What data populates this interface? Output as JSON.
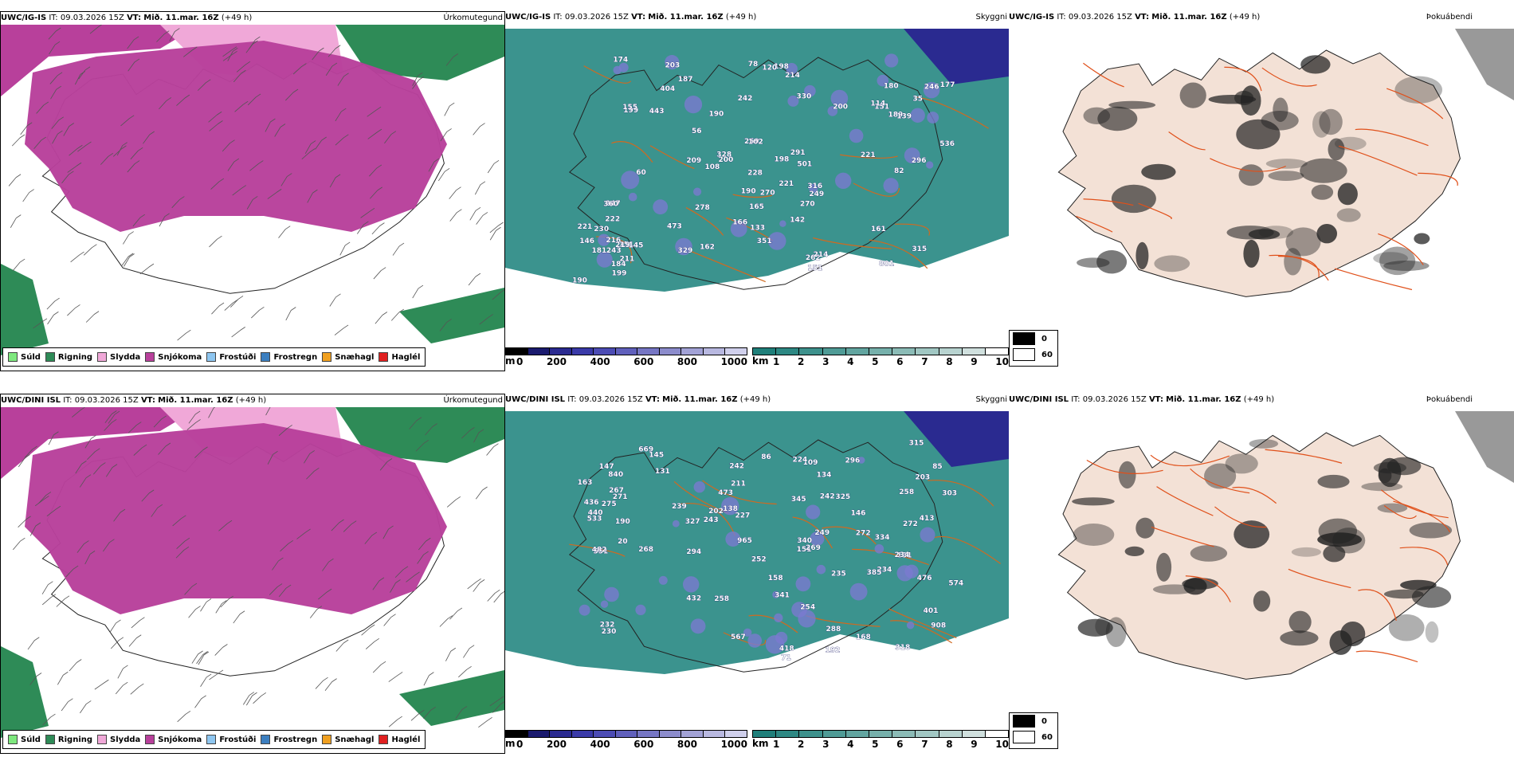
{
  "rows": [
    {
      "model": "UWC/IG-IS",
      "it_label": "IT:",
      "it": "09.03.2026 15Z",
      "vt_label": "VT:",
      "vt": "Mið. 11.mar. 16Z",
      "lead": "(+49 h)",
      "numbers": [
        "404",
        "296",
        "200",
        "801",
        "222",
        "199",
        "501",
        "329",
        "278",
        "246",
        "151",
        "187",
        "155",
        "177",
        "162",
        "214",
        "211",
        "189",
        "198",
        "262",
        "247",
        "328",
        "221",
        "259",
        "190",
        "315",
        "473",
        "181",
        "108",
        "180",
        "221",
        "165",
        "351",
        "203",
        "142",
        "330",
        "270",
        "190",
        "228",
        "249",
        "216",
        "242",
        "536",
        "60",
        "82",
        "139",
        "291",
        "146",
        "316",
        "214",
        "209",
        "270",
        "200",
        "221",
        "151",
        "230",
        "120",
        "198",
        "243",
        "360",
        "145",
        "219",
        "184",
        "56",
        "78",
        "35",
        "190",
        "133",
        "161",
        "151",
        "102",
        "174",
        "166",
        "114",
        "443",
        "199"
      ]
    },
    {
      "model": "UWC/DINI ISL",
      "it_label": "IT:",
      "it": "09.03.2026 15Z",
      "vt_label": "VT:",
      "vt": "Mið. 11.mar. 16Z",
      "lead": "(+49 h)",
      "numbers": [
        "413",
        "242",
        "252",
        "234",
        "272",
        "551",
        "243",
        "669",
        "258",
        "315",
        "440",
        "145",
        "168",
        "235",
        "227",
        "239",
        "211",
        "272",
        "385",
        "340",
        "131",
        "109",
        "341",
        "296",
        "840",
        "345",
        "334",
        "224",
        "482",
        "567",
        "473",
        "432",
        "401",
        "318",
        "242",
        "249",
        "294",
        "965",
        "203",
        "275",
        "574",
        "533",
        "158",
        "134",
        "138",
        "908",
        "146",
        "327",
        "325",
        "151",
        "230",
        "267",
        "71",
        "147",
        "86",
        "85",
        "269",
        "131",
        "271",
        "436",
        "254",
        "258",
        "288",
        "303",
        "232",
        "234",
        "192",
        "418",
        "476",
        "163",
        "190",
        "268",
        "202",
        "20"
      ]
    }
  ],
  "titles": {
    "precip_type": "Úrkomutegund",
    "cloud_base": "Skyggni",
    "fog": "Þokuábendi"
  },
  "precip_legend": [
    {
      "label": "Súld",
      "color": "#7ee87e"
    },
    {
      "label": "Rigning",
      "color": "#2e8b57"
    },
    {
      "label": "Slydda",
      "color": "#f0a8d8"
    },
    {
      "label": "Snjókoma",
      "color": "#b8409b"
    },
    {
      "label": "Frostúði",
      "color": "#8ec6f0"
    },
    {
      "label": "Frostregn",
      "color": "#3c7fc0"
    },
    {
      "label": "Snæhagl",
      "color": "#f0a020"
    },
    {
      "label": "Haglél",
      "color": "#e02020"
    }
  ],
  "cloud_bar": {
    "unit": "m",
    "ticks": [
      "0",
      "200",
      "400",
      "600",
      "800",
      "1000"
    ],
    "colors": [
      "#000000",
      "#1a1a6e",
      "#2a2a90",
      "#3a3aa8",
      "#4c4cb4",
      "#6060bc",
      "#7676c4",
      "#8c8ccc",
      "#a2a2d6",
      "#b8b8e0",
      "#d0d0ec"
    ]
  },
  "vis_bar": {
    "unit": "km",
    "ticks": [
      "1",
      "2",
      "3",
      "4",
      "5",
      "6",
      "7",
      "8",
      "9",
      "10"
    ],
    "colors": [
      "#1f7f7a",
      "#2d8883",
      "#3d918c",
      "#4f9b96",
      "#62a5a0",
      "#76b0ab",
      "#8bbbb6",
      "#a1c7c3",
      "#b8d3d0",
      "#d0e0de",
      "#ffffff"
    ]
  },
  "fog_legend": [
    {
      "label": "0",
      "color": "#000000"
    },
    {
      "label": "60",
      "color": "#ffffff"
    }
  ],
  "colors": {
    "snow": "#b8409b",
    "sleet": "#f0a8d8",
    "rain": "#2e8b57",
    "vis_teal": "#2a8a84",
    "road": "#d06a20",
    "land_fog": "#f3e1d6"
  }
}
